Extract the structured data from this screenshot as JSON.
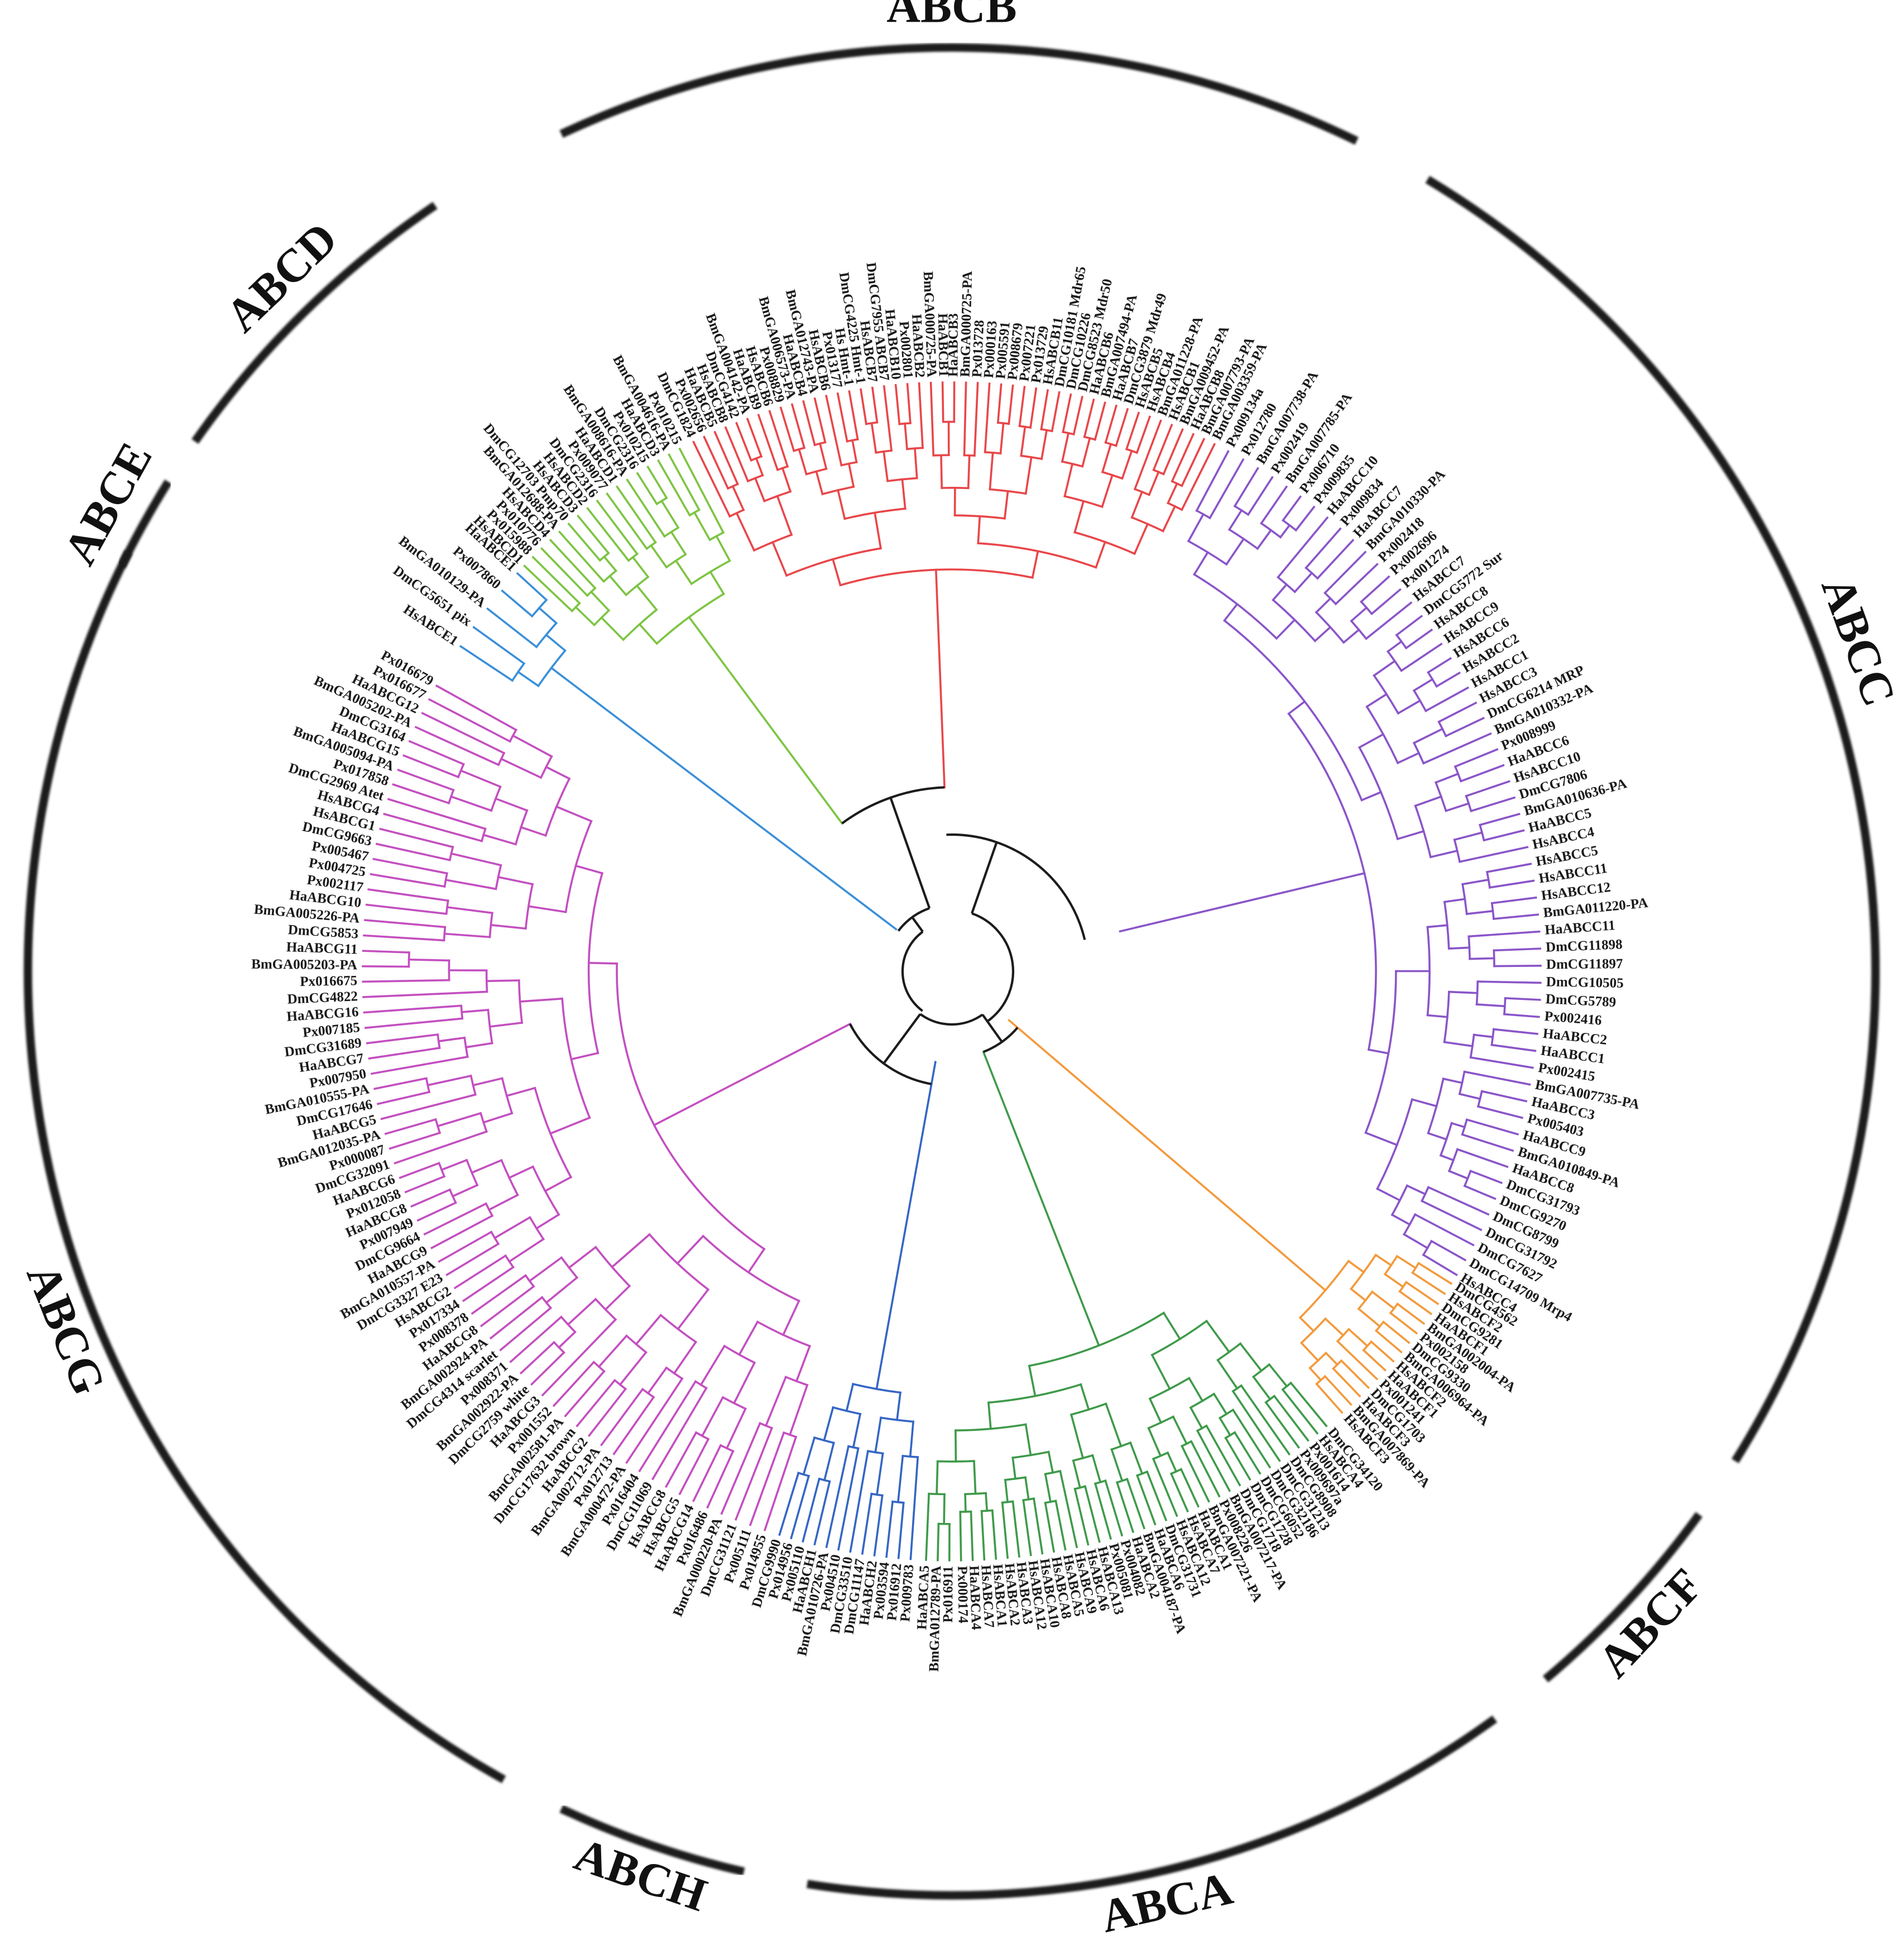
{
  "figure": {
    "families": [
      {
        "id": "ABCE",
        "label": "ABCE",
        "color": "#3a8fd8"
      },
      {
        "id": "ABCD",
        "label": "ABCD",
        "color": "#7cc442"
      },
      {
        "id": "ABCB",
        "label": "ABCB",
        "color": "#e8474a"
      },
      {
        "id": "ABCC",
        "label": "ABCC",
        "color": "#8a55c8"
      },
      {
        "id": "ABCF",
        "label": "ABCF",
        "color": "#f29a3c"
      },
      {
        "id": "ABCA",
        "label": "ABCA",
        "color": "#3f9a4a"
      },
      {
        "id": "ABCH",
        "label": "ABCH",
        "color": "#3566c4"
      },
      {
        "id": "ABCG",
        "label": "ABCG",
        "color": "#c34fc0"
      }
    ],
    "leaves": {
      "ABCE": [
        "HsABCE1",
        "DmCG5651 pix",
        "BmGA010129-PA",
        "Px007860",
        "HaABCE1"
      ],
      "ABCD": [
        "HsABCD1",
        "Px015988",
        "Px010776",
        "HsABCD4",
        "BmGA012688-PA",
        "DmCG12703 Pmp70",
        "HsABCD3",
        "HsABCD2",
        "DmCG2316",
        "Px009077",
        "HaABCD1",
        "BmGA008616-PA",
        "DmCG2316",
        "Px010215",
        "HaABCD3",
        "BmGA004616-PA",
        "Px010215"
      ],
      "ABCB": [
        "DmCG1824",
        "Px002656",
        "HaABCB5",
        "HsABCB8",
        "DmCG4142",
        "BmGA004142-PA",
        "HaABCB9",
        "HsABCB6",
        "Px008829",
        "BmGA006573-PA",
        "HaABCB4",
        "BmGA012743-PA",
        "HsABCB6",
        "Px013177",
        "Hs Hmt-1",
        "DmCG4225 Hmt-1",
        "HsABCB7",
        "DmCG7955 ABCB7",
        "HaABCB10",
        "Px002801",
        "HaABCB2",
        "BmGA000725-PA",
        "HaABCB1",
        "HaABCB3",
        "BmGA000725-PA",
        "Px013728",
        "Px000163",
        "Px005591",
        "Px008679",
        "Px007221",
        "Px013729",
        "HsABCB11",
        "DmCG10181 Mdr65",
        "DmCG10226",
        "DmCG8523 Mdr50",
        "HaABCB6",
        "BmGA007494-PA",
        "HaABCB7",
        "DmCG3879 Mdr49",
        "HsABCB5",
        "HsABCB4",
        "BmGA011228-PA",
        "HsABCB1",
        "BmGA009452-PA",
        "HaABCB8",
        "BmGA007793-PA",
        "BmGA003359-PA"
      ],
      "ABCC": [
        "Px009134a",
        "Px012780",
        "BmGA007738-PA",
        "Px002419",
        "BmGA007785-PA",
        "Px006710",
        "Px009835",
        "HaABCC10",
        "Px009834",
        "HaABCC7",
        "BmGA010330-PA",
        "Px002418",
        "Px002696",
        "Px001274",
        "HsABCC7",
        "DmCG5772 Sur",
        "HsABCC8",
        "HsABCC9",
        "HsABCC6",
        "HsABCC2",
        "HsABCC1",
        "HsABCC3",
        "DmCG6214 MRP",
        "BmGA010332-PA",
        "Px008999",
        "HaABCC6",
        "HsABCC10",
        "DmCG7806",
        "BmGA010636-PA",
        "HaABCC5",
        "HsABCC4",
        "HsABCC5",
        "HsABCC11",
        "HsABCC12",
        "BmGA011220-PA",
        "HaABCC11",
        "DmCG11898",
        "DmCG11897",
        "DmCG10505",
        "DmCG5789",
        "Px002416",
        "HaABCC2",
        "HaABCC1",
        "Px002415",
        "BmGA007735-PA",
        "HaABCC3",
        "Px005403",
        "HaABCC9",
        "BmGA010849-PA",
        "HaABCC8",
        "DmCG31793",
        "DmCG9270",
        "DmCG8799",
        "DmCG31792",
        "DmCG7627",
        "DmCG14709 Mrp4",
        "HsABCC4"
      ],
      "ABCF": [
        "DmCG4562",
        "HsABCF2",
        "DmCG9281",
        "HaABCF1",
        "BmGA002004-PA",
        "Px002158",
        "DmCG9330",
        "BmGA006964-PA",
        "HsABCF2",
        "HaABCF1",
        "Px001241",
        "DmCG1703",
        "HaABCF3",
        "BmGA007869-PA",
        "HsABCF3"
      ],
      "ABCA": [
        "DmCG34120",
        "HsABCA4",
        "Px001614",
        "Px009697a",
        "DmCG8908",
        "DmCG31213",
        "DmCG32186",
        "DmCG6052",
        "DmCG1728",
        "DmCG1718",
        "BmGA007217-PA",
        "Px008226",
        "BmGA007221-PA",
        "HaABCA1",
        "HsABCA7",
        "HsABCA12",
        "DmCG31731",
        "HaABCA6",
        "BmGA004187-PA",
        "HaABCA2",
        "Px004082",
        "Px005081",
        "HsABCA13",
        "HsABCA6",
        "HsABCA9",
        "HsABCA5",
        "HsABCA8",
        "HsABCA10",
        "HsABCA12",
        "HsABCA3",
        "HsABCA2",
        "HsABCA1",
        "HsABCA7",
        "HaABCA4",
        "Px000174",
        "Px016911",
        "BmGA012789-PA",
        "HaABCA5"
      ],
      "ABCH": [
        "Px009783",
        "Px016912",
        "Px003594",
        "HaABCH2",
        "DmCG11147",
        "DmCG33510",
        "Px004510",
        "BmGA010726-PA",
        "HaABCH1",
        "Px005110",
        "Px014956",
        "DmCG9990"
      ],
      "ABCG": [
        "Px014955",
        "Px005111",
        "DmCG31121",
        "BmGA000220-PA",
        "Px016486",
        "HaABCG14",
        "HsABCG5",
        "HsABCG8",
        "DmCG11069",
        "Px016404",
        "BmGA000472-PA",
        "Px012713",
        "BmGA002712-PA",
        "HaABCG2",
        "DmCG17632 brown",
        "BmGA002581-PA",
        "Px001552",
        "HaABCG3",
        "DmCG2759 white",
        "BmGA002922-PA",
        "Px008371",
        "DmCG4314 scarlet",
        "BmGA002924-PA",
        "HaABCG8",
        "Px008378",
        "Px017334",
        "HsABCG2",
        "DmCG3327 E23",
        "BmGA010557-PA",
        "HaABCG9",
        "DmCG9664",
        "Px007949",
        "HaABCG8",
        "Px012058",
        "HaABCG6",
        "DmCG32091",
        "Px000087",
        "BmGA012035-PA",
        "HaABCG5",
        "DmCG17646",
        "BmGA010555-PA",
        "Px007950",
        "HaABCG7",
        "DmCG31689",
        "Px007185",
        "HaABCG16",
        "DmCG4822",
        "Px016675",
        "BmGA005203-PA",
        "HaABCG11",
        "DmCG5853",
        "BmGA005226-PA",
        "HaABCG10",
        "Px002117",
        "Px004725",
        "Px005467",
        "DmCG9663",
        "HsABCG1",
        "HsABCG4",
        "DmCG2969 Atet",
        "Px017858",
        "BmGA005094-PA",
        "HaABCG15",
        "DmCG3164",
        "BmGA005202-PA",
        "HaABCG12",
        "Px016677",
        "Px016679"
      ]
    }
  }
}
